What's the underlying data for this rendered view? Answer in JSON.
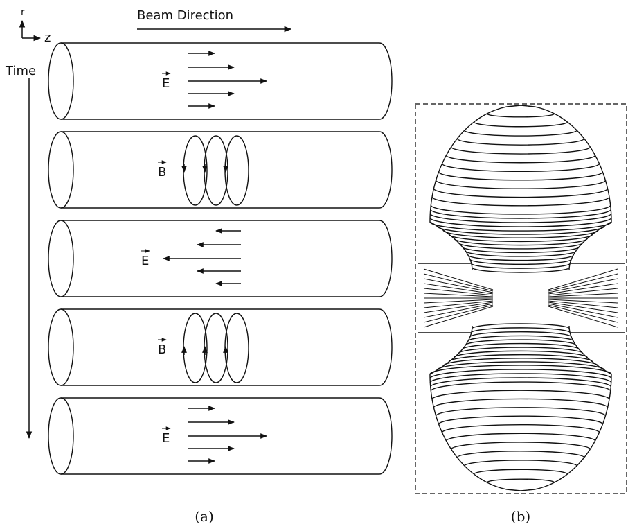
{
  "axes": {
    "r": "r",
    "z": "z",
    "time": "Time"
  },
  "beam_direction": "Beam Direction",
  "panels": [
    {
      "field": "E"
    },
    {
      "field": "B"
    },
    {
      "field": "E"
    },
    {
      "field": "B"
    },
    {
      "field": "E"
    }
  ],
  "captions": [
    "(a)",
    "(b)"
  ]
}
